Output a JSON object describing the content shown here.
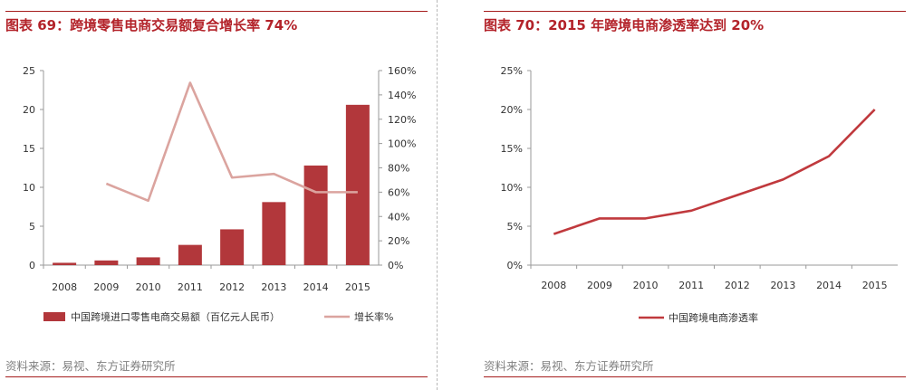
{
  "source_text": "资料来源：易视、东方证券研究所",
  "chart_data": [
    {
      "type": "bar",
      "title": "图表 69：跨境零售电商交易额复合增长率 74%",
      "categories": [
        "2008",
        "2009",
        "2010",
        "2011",
        "2012",
        "2013",
        "2014",
        "2015"
      ],
      "series": [
        {
          "name": "中国跨境进口零售电商交易额（百亿元人民币）",
          "type": "bar",
          "axis": "left",
          "values": [
            0.3,
            0.6,
            1.0,
            2.6,
            4.6,
            8.1,
            12.8,
            20.6
          ]
        },
        {
          "name": "增长率%",
          "type": "line",
          "axis": "right",
          "values": [
            null,
            67,
            53,
            150,
            72,
            75,
            60,
            60
          ]
        }
      ],
      "y_left": {
        "ticks": [
          "0",
          "5",
          "10",
          "15",
          "20",
          "25"
        ],
        "ylim": [
          0,
          25
        ]
      },
      "y_right": {
        "ticks": [
          "0%",
          "20%",
          "40%",
          "60%",
          "80%",
          "100%",
          "120%",
          "140%",
          "160%"
        ],
        "ylim": [
          0,
          160
        ]
      },
      "colors": {
        "bar": "#b2373b",
        "line": "#dba49f",
        "axis": "#9a9a9a"
      },
      "legend_position": "bottom"
    },
    {
      "type": "line",
      "title": "图表 70：2015 年跨境电商渗透率达到 20%",
      "categories": [
        "2008",
        "2009",
        "2010",
        "2011",
        "2012",
        "2013",
        "2014",
        "2015"
      ],
      "series": [
        {
          "name": "中国跨境电商渗透率",
          "values": [
            4,
            6,
            6,
            7,
            9,
            11,
            14,
            20
          ]
        }
      ],
      "y": {
        "ticks": [
          "0%",
          "5%",
          "10%",
          "15%",
          "20%",
          "25%"
        ],
        "ylim": [
          0,
          25
        ]
      },
      "colors": {
        "line": "#c0393d",
        "axis": "#9a9a9a"
      },
      "legend_position": "bottom"
    }
  ]
}
